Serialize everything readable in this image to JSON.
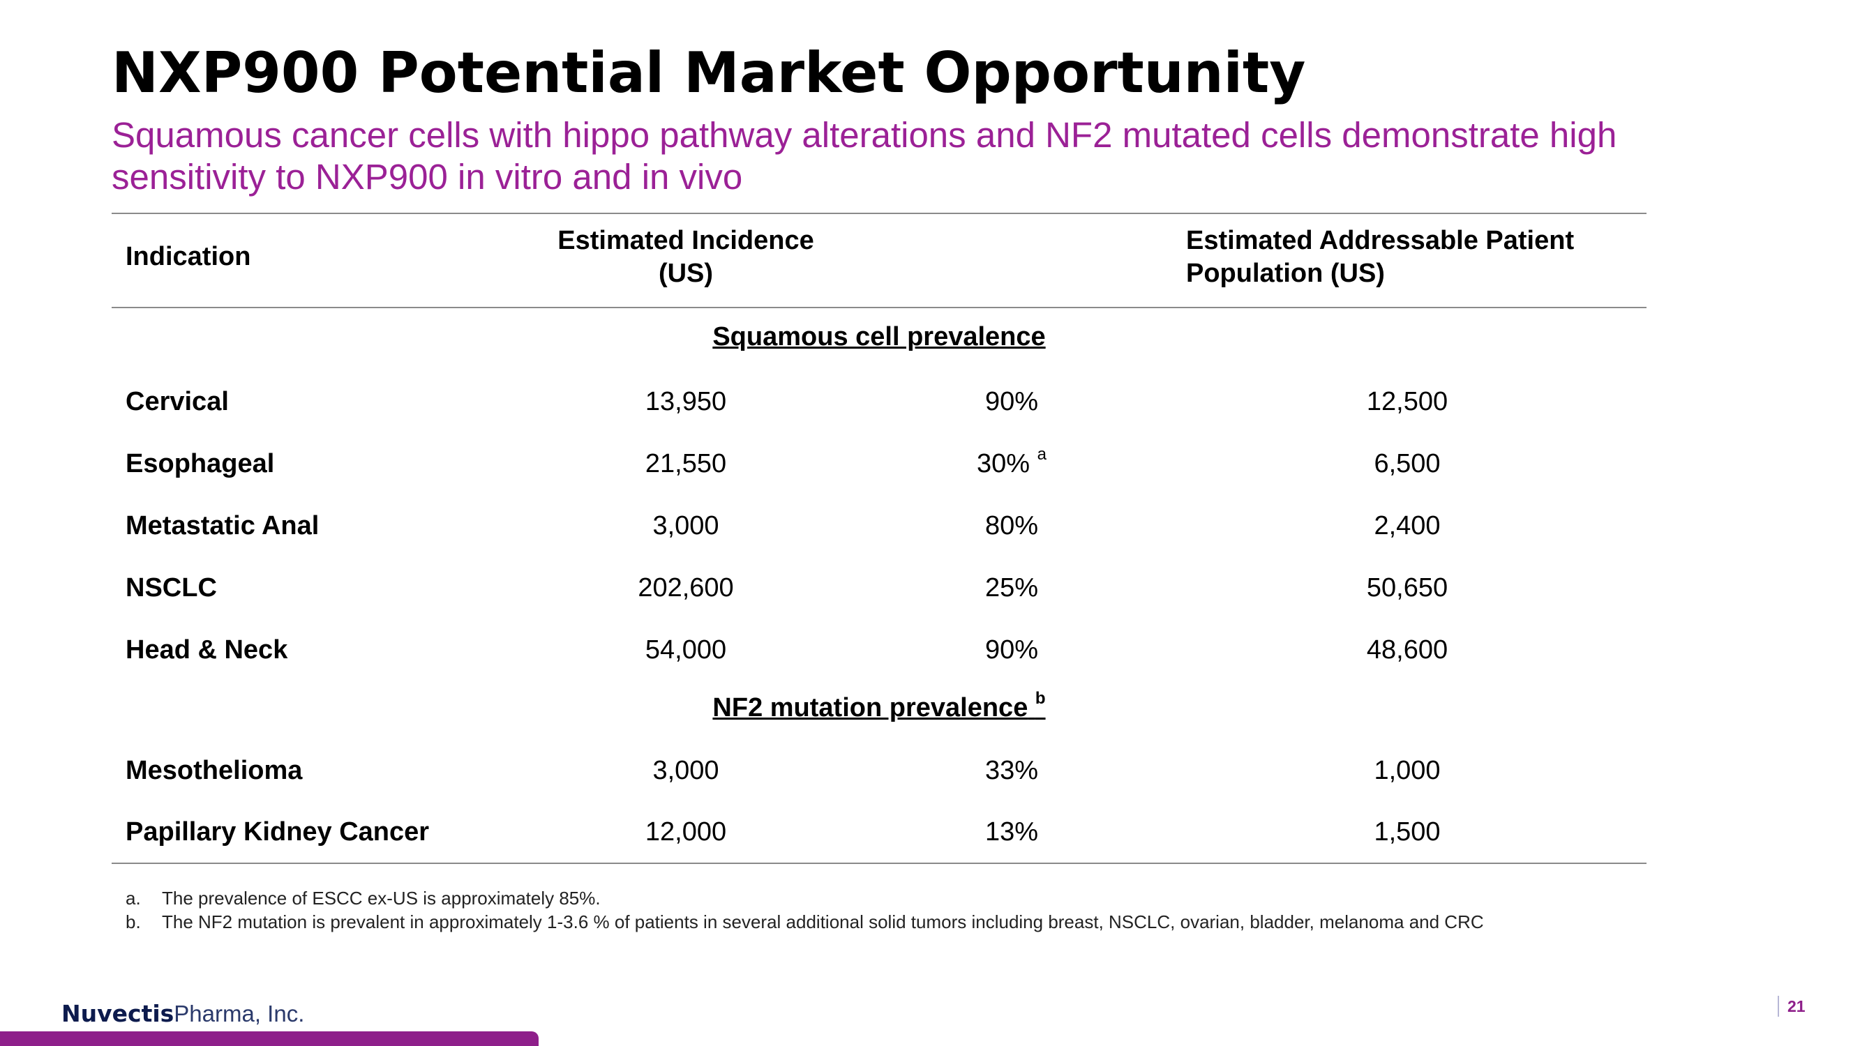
{
  "title": "NXP900 Potential Market Opportunity",
  "subtitle": "Squamous cancer cells with hippo pathway alterations and NF2 mutated cells demonstrate high sensitivity to NXP900 in vitro and in vivo",
  "table": {
    "headers": {
      "indication": "Indication",
      "incidence_line1": "Estimated Incidence",
      "incidence_line2": "(US)",
      "population_line1": "Estimated Addressable Patient",
      "population_line2": "Population (US)"
    },
    "sections": [
      {
        "title": "Squamous cell prevalence",
        "marker": "",
        "rows": [
          {
            "indication": "Cervical",
            "incidence": "13,950",
            "prevalence": "90%",
            "marker": "",
            "population": "12,500"
          },
          {
            "indication": "Esophageal",
            "incidence": "21,550",
            "prevalence": "30%",
            "marker": "a",
            "population": "6,500"
          },
          {
            "indication": "Metastatic Anal",
            "incidence": "3,000",
            "prevalence": "80%",
            "marker": "",
            "population": "2,400"
          },
          {
            "indication": "NSCLC",
            "incidence": "202,600",
            "prevalence": "25%",
            "marker": "",
            "population": "50,650"
          },
          {
            "indication": "Head & Neck",
            "incidence": "54,000",
            "prevalence": "90%",
            "marker": "",
            "population": "48,600"
          }
        ]
      },
      {
        "title": "NF2 mutation prevalence",
        "marker": "b",
        "rows": [
          {
            "indication": "Mesothelioma",
            "incidence": "3,000",
            "prevalence": "33%",
            "marker": "",
            "population": "1,000"
          },
          {
            "indication": "Papillary Kidney Cancer",
            "incidence": "12,000",
            "prevalence": "13%",
            "marker": "",
            "population": "1,500"
          }
        ]
      }
    ]
  },
  "footnotes": [
    {
      "marker": "a.",
      "text": "The prevalence of ESCC ex-US is approximately 85%."
    },
    {
      "marker": "b.",
      "text": "The NF2 mutation is prevalent in approximately 1-3.6 % of patients in several additional solid tumors including breast, NSCLC, ovarian, bladder, melanoma and CRC"
    }
  ],
  "footer": {
    "brand": "Nuvectis",
    "brand_suffix": "Pharma, Inc.",
    "page_number": "21"
  },
  "colors": {
    "accent": "#9b2196",
    "bar": "#8e1f8a",
    "brand": "#0d1b4d"
  }
}
